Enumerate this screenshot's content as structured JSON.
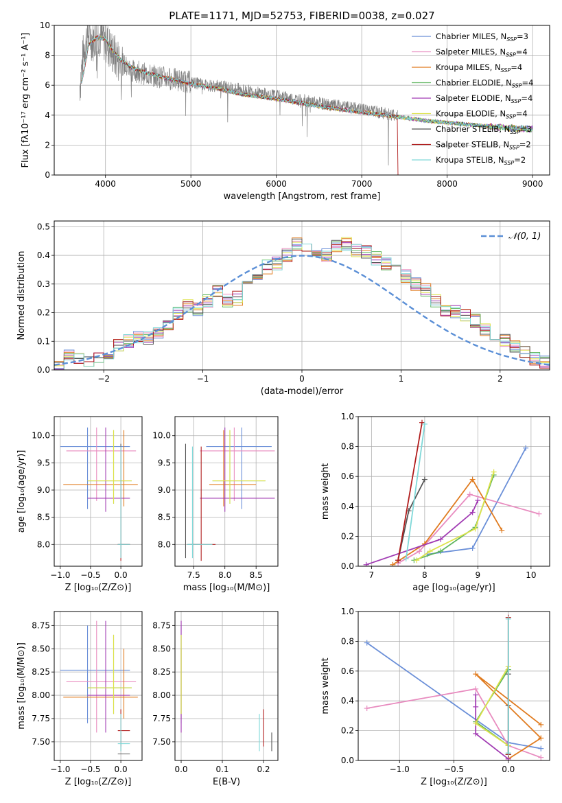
{
  "chart_data": [
    {
      "type": "line",
      "title": "PLATE=1171, MJD=52753, FIBERID=0038, z=0.027",
      "xlabel": "wavelength [Angstrom, rest frame]",
      "ylabel": "Flux [fλ10⁻¹⁷ erg cm⁻² s⁻¹ A⁻¹]",
      "xlim": [
        3400,
        9200
      ],
      "ylim": [
        0,
        10
      ],
      "xticks": [
        4000,
        5000,
        6000,
        7000,
        8000,
        9000
      ],
      "yticks": [
        0,
        2,
        4,
        6,
        8,
        10
      ],
      "legend_position": "upper-right",
      "legend": [
        "Chabrier MILES, N_SSP=3",
        "Salpeter MILES, N_SSP=4",
        "Kroupa MILES, N_SSP=4",
        "Chabrier ELODIE, N_SSP=4",
        "Salpeter ELODIE, N_SSP=4",
        "Kroupa ELODIE, N_SSP=4",
        "Chabrier STELIB, N_SSP=3",
        "Salpeter STELIB, N_SSP=2",
        "Kroupa STELIB, N_SSP=2"
      ],
      "data_spectrum": {
        "name": "",
        "color": "#808080",
        "x": [
          3700,
          3750,
          3800,
          3850,
          3900,
          4000,
          4100,
          4200,
          4300,
          4500,
          4700,
          5000,
          5200,
          5500,
          5800,
          6000,
          6300,
          6600,
          7000,
          7200,
          7400
        ],
        "y": [
          6.0,
          8.5,
          9.5,
          9.0,
          9.5,
          9.0,
          8.0,
          7.4,
          7.0,
          6.7,
          6.5,
          6.2,
          6.0,
          5.8,
          5.5,
          5.3,
          5.0,
          4.7,
          4.4,
          4.2,
          4.0
        ]
      },
      "model_spectrum": {
        "x": [
          3700,
          3750,
          3800,
          3900,
          4000,
          4100,
          4200,
          4300,
          4500,
          4700,
          5000,
          5300,
          5600,
          6000,
          6300,
          6600,
          7000,
          7400,
          7800,
          8200,
          8600,
          9000
        ],
        "y": [
          5.6,
          7.0,
          8.7,
          9.2,
          9.1,
          8.2,
          7.6,
          7.2,
          6.8,
          6.5,
          6.1,
          5.8,
          5.4,
          5.1,
          4.8,
          4.5,
          4.2,
          3.9,
          3.6,
          3.4,
          3.2,
          3.05
        ]
      }
    },
    {
      "type": "histogram",
      "xlabel": "(data-model)/error",
      "ylabel": "Normed distribution",
      "xlim": [
        -2.5,
        2.5
      ],
      "ylim": [
        0,
        0.52
      ],
      "xticks": [
        -2,
        -1,
        0,
        1,
        2
      ],
      "yticks": [
        0.0,
        0.1,
        0.2,
        0.3,
        0.4,
        0.5
      ],
      "legend_position": "upper-right",
      "reference_curve": {
        "name": "𝒩(0, 1)",
        "color": "#5b8fd6"
      },
      "bin_width": 0.1,
      "bins_start": -2.5,
      "values": [
        0.01,
        0.05,
        0.04,
        0.03,
        0.04,
        0.06,
        0.09,
        0.1,
        0.11,
        0.11,
        0.13,
        0.16,
        0.2,
        0.22,
        0.21,
        0.24,
        0.27,
        0.24,
        0.25,
        0.31,
        0.33,
        0.36,
        0.37,
        0.4,
        0.44,
        0.42,
        0.41,
        0.4,
        0.43,
        0.44,
        0.42,
        0.41,
        0.39,
        0.37,
        0.35,
        0.33,
        0.3,
        0.28,
        0.24,
        0.21,
        0.2,
        0.19,
        0.17,
        0.14,
        0.12,
        0.1,
        0.08,
        0.06,
        0.04,
        0.03
      ]
    },
    {
      "type": "scatter",
      "xlabel": "Z [log₁₀(Z/Z⊙)]",
      "ylabel": "age  [log₁₀(age/yr)]",
      "xlim": [
        -1.1,
        0.35
      ],
      "ylim": [
        7.6,
        10.35
      ],
      "xticks": [
        -1.0,
        -0.5,
        0.0
      ],
      "yticks": [
        8.0,
        8.5,
        9.0,
        9.5,
        10.0
      ]
    },
    {
      "type": "scatter",
      "xlabel": "mass [log₁₀(M/M⊙)]",
      "ylabel": "",
      "xlim": [
        7.2,
        8.85
      ],
      "ylim": [
        7.6,
        10.35
      ],
      "xticks": [
        7.5,
        8.0,
        8.5
      ],
      "yticks": [
        8.0,
        8.5,
        9.0,
        9.5,
        10.0
      ]
    },
    {
      "type": "line",
      "xlabel": "age  [log₁₀(age/yr)]",
      "ylabel": "mass weight",
      "xlim": [
        6.75,
        10.35
      ],
      "ylim": [
        0,
        1
      ],
      "xticks": [
        7,
        8,
        9,
        10
      ],
      "yticks": [
        0.0,
        0.2,
        0.4,
        0.6,
        0.8,
        1.0
      ]
    },
    {
      "type": "scatter",
      "xlabel": "Z [log₁₀(Z/Z⊙)]",
      "ylabel": "mass [log₁₀(M/M⊙)]",
      "xlim": [
        -1.1,
        0.35
      ],
      "ylim": [
        7.3,
        8.9
      ],
      "xticks": [
        -1.0,
        -0.5,
        0.0
      ],
      "yticks": [
        7.5,
        7.75,
        8.0,
        8.25,
        8.5,
        8.75
      ]
    },
    {
      "type": "scatter",
      "xlabel": "E(B-V)",
      "ylabel": "",
      "xlim": [
        -0.015,
        0.235
      ],
      "ylim": [
        7.3,
        8.9
      ],
      "xticks": [
        0.0,
        0.1,
        0.2
      ],
      "yticks": [
        7.5,
        7.75,
        8.0,
        8.25,
        8.5,
        8.75
      ]
    },
    {
      "type": "line",
      "xlabel": "Z [log₁₀(Z/Z⊙)]",
      "ylabel": "mass weight",
      "xlim": [
        -1.38,
        0.38
      ],
      "ylim": [
        0,
        1
      ],
      "xticks": [
        -1.0,
        -0.5,
        0.0
      ],
      "yticks": [
        0.0,
        0.2,
        0.4,
        0.6,
        0.8,
        1.0
      ]
    }
  ],
  "model_colors": [
    "#6a8fd8",
    "#e88bbf",
    "#e07b1f",
    "#5fb55f",
    "#a13bb3",
    "#dde24a",
    "#555555",
    "#b01c1c",
    "#7fd8d8"
  ],
  "models": [
    {
      "name": "Chabrier MILES",
      "color": "#6a8fd8",
      "sp_age": [
        9.9,
        8.9,
        8.05
      ],
      "sp_w": [
        0.79,
        0.12,
        0.08
      ],
      "sp_Z": [
        -1.3,
        0.0,
        0.3
      ],
      "age_est": 9.8,
      "age_lo": 8.65,
      "age_hi": 10.15,
      "Z_est": -0.55,
      "Z_lo": -1.0,
      "Z_hi": 0.15,
      "mass_est": 8.27,
      "mass_lo": 7.7,
      "mass_hi": 8.75,
      "ebv": 0.0
    },
    {
      "name": "Salpeter MILES",
      "color": "#e88bbf",
      "sp_age": [
        10.15,
        8.85,
        7.9,
        7.5
      ],
      "sp_w": [
        0.35,
        0.48,
        0.1,
        0.02
      ],
      "sp_Z": [
        -1.3,
        -0.3,
        0.0,
        0.3
      ],
      "age_est": 9.72,
      "age_lo": 8.8,
      "age_hi": 10.15,
      "Z_est": -0.4,
      "Z_lo": -0.9,
      "Z_hi": 0.25,
      "mass_est": 8.15,
      "mass_lo": 7.6,
      "mass_hi": 8.8,
      "ebv": 0.0
    },
    {
      "name": "Kroupa MILES",
      "color": "#e07b1f",
      "sp_age": [
        9.45,
        8.9,
        8.0,
        7.4
      ],
      "sp_w": [
        0.24,
        0.58,
        0.15,
        0.01
      ],
      "sp_Z": [
        0.3,
        -0.3,
        0.3,
        0.0
      ],
      "age_est": 9.1,
      "age_lo": 8.7,
      "age_hi": 10.1,
      "Z_est": 0.05,
      "Z_lo": -0.95,
      "Z_hi": 0.28,
      "mass_est": 7.98,
      "mass_lo": 7.75,
      "mass_hi": 8.5,
      "ebv": 0.0
    },
    {
      "name": "Chabrier ELODIE",
      "color": "#5fb55f",
      "sp_age": [
        9.3,
        8.95,
        8.3,
        7.8
      ],
      "sp_w": [
        0.61,
        0.26,
        0.1,
        0.04
      ],
      "sp_Z": [
        0.0,
        -0.3,
        0.0,
        0.0
      ],
      "age_est": 9.17,
      "age_lo": 8.75,
      "age_hi": 10.1,
      "Z_est": -0.12,
      "Z_lo": -0.55,
      "Z_hi": 0.18,
      "mass_est": 8.08,
      "mass_lo": 7.8,
      "mass_hi": 8.65,
      "ebv": 0.0
    },
    {
      "name": "Salpeter ELODIE",
      "color": "#a13bb3",
      "sp_age": [
        9.0,
        8.9,
        8.3,
        6.9
      ],
      "sp_w": [
        0.44,
        0.36,
        0.18,
        0.01
      ],
      "sp_Z": [
        -0.3,
        -0.3,
        -0.3,
        0.0
      ],
      "age_est": 8.85,
      "age_lo": 8.6,
      "age_hi": 10.15,
      "Z_est": -0.25,
      "Z_lo": -0.55,
      "Z_hi": 0.15,
      "mass_est": 8.0,
      "mass_lo": 7.6,
      "mass_hi": 8.8,
      "ebv": 0.0
    },
    {
      "name": "Kroupa ELODIE",
      "color": "#dde24a",
      "sp_age": [
        9.3,
        8.95,
        8.1,
        7.85
      ],
      "sp_w": [
        0.63,
        0.25,
        0.1,
        0.04
      ],
      "sp_Z": [
        0.0,
        -0.3,
        0.0,
        0.0
      ],
      "age_est": 9.17,
      "age_lo": 8.75,
      "age_hi": 10.1,
      "Z_est": -0.12,
      "Z_lo": -0.55,
      "Z_hi": 0.18,
      "mass_est": 8.08,
      "mass_lo": 7.8,
      "mass_hi": 8.65,
      "ebv": 0.0
    },
    {
      "name": "Chabrier STELIB",
      "color": "#555555",
      "sp_age": [
        8.0,
        7.7,
        7.5
      ],
      "sp_w": [
        0.58,
        0.37,
        0.04
      ],
      "sp_Z": [
        0.0,
        0.0,
        0.0
      ],
      "age_est": 8.0,
      "age_lo": 7.75,
      "age_hi": 9.85,
      "Z_est": 0.0,
      "Z_lo": -0.05,
      "Z_hi": 0.15,
      "mass_est": 7.37,
      "mass_lo": 7.4,
      "mass_hi": 7.6,
      "ebv": 0.22
    },
    {
      "name": "Salpeter STELIB",
      "color": "#b01c1c",
      "sp_age": [
        7.95,
        7.5
      ],
      "sp_w": [
        0.96,
        0.04
      ],
      "sp_Z": [
        0.0,
        0.0
      ],
      "age_est": 8.0,
      "age_lo": 7.7,
      "age_hi": 9.8,
      "Z_est": 0.0,
      "Z_lo": -0.05,
      "Z_hi": 0.15,
      "mass_est": 7.62,
      "mass_lo": 7.45,
      "mass_hi": 7.85,
      "ebv": 0.2
    },
    {
      "name": "Kroupa STELIB",
      "color": "#7fd8d8",
      "sp_age": [
        8.0,
        7.65
      ],
      "sp_w": [
        0.95,
        0.05
      ],
      "sp_Z": [
        0.0,
        0.0
      ],
      "age_est": 8.0,
      "age_lo": 7.75,
      "age_hi": 9.8,
      "Z_est": 0.0,
      "Z_lo": -0.05,
      "Z_hi": 0.15,
      "mass_est": 7.48,
      "mass_lo": 7.4,
      "mass_hi": 7.8,
      "ebv": 0.19
    }
  ]
}
